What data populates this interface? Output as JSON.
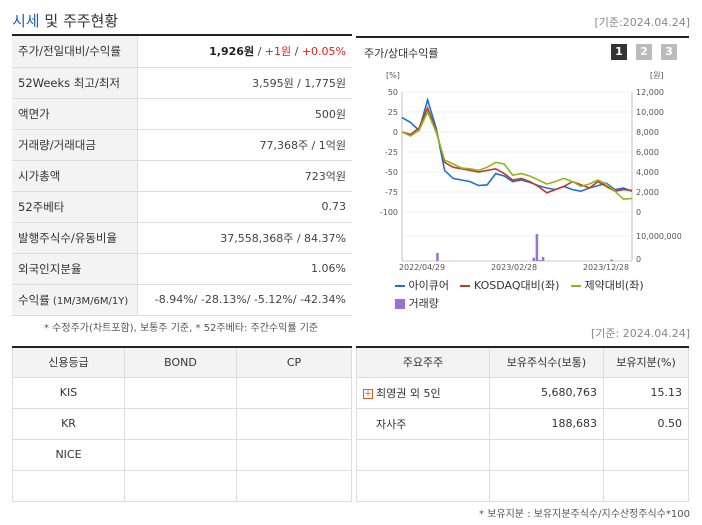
{
  "header": {
    "title_hl": "시세",
    "title_rest": " 및 주주현황",
    "date": "[기준:2024.04.24]"
  },
  "market": {
    "rows": [
      {
        "label": "주가/전일대비/수익률"
      },
      {
        "label": "52Weeks 최고/최저",
        "value": "3,595원 / 1,775원"
      },
      {
        "label": "액면가",
        "value": "500원"
      },
      {
        "label": "거래량/거래대금",
        "value": "77,368주 / 1억원"
      },
      {
        "label": "시가총액",
        "value": "723억원"
      },
      {
        "label": "52주베타",
        "value": "0.73"
      },
      {
        "label": "발행주식수/유동비율",
        "value": "37,558,368주 / 84.37%"
      },
      {
        "label": "외국인지분율",
        "value": "1.06%"
      }
    ],
    "price": "1,926원",
    "sep1": " / ",
    "change": "+1원",
    "sep2": " / ",
    "pct": "+0.05%",
    "return_label": "수익률",
    "return_sub": " (1M/3M/6M/1Y)",
    "returns": "-8.94%/ -28.13%/ -5.12%/ -42.34%"
  },
  "chart_panel": {
    "title": "주가/상대수익률",
    "pages": [
      "1",
      "2",
      "3"
    ],
    "left_unit": "[%]",
    "right_unit": "[원]"
  },
  "chart_data": {
    "type": "line",
    "left_axis_ticks": [
      "50",
      "25",
      "0",
      "-25",
      "-50",
      "-75",
      "-100"
    ],
    "right_axis_ticks": [
      "12,000",
      "10,000",
      "8,000",
      "6,000",
      "4,000",
      "2,000",
      "0"
    ],
    "volume_axis_ticks": [
      "10,000,000",
      "0"
    ],
    "x_ticks": [
      "2022/04/29",
      "2023/02/28",
      "2023/12/28"
    ],
    "ylim": [
      -100,
      50
    ],
    "series": [
      {
        "name": "아이큐어",
        "color": "#1f6fd1",
        "values": [
          18,
          12,
          2,
          40,
          5,
          -48,
          -58,
          -60,
          -62,
          -67,
          -66,
          -52,
          -55,
          -62,
          -60,
          -63,
          -67,
          -70,
          -72,
          -68,
          -72,
          -74,
          -70,
          -67,
          -64,
          -72,
          -70,
          -74
        ]
      },
      {
        "name": "KOSDAQ대비(좌)",
        "color": "#c0392b",
        "values": [
          0,
          -3,
          5,
          30,
          2,
          -38,
          -44,
          -46,
          -48,
          -50,
          -48,
          -46,
          -52,
          -60,
          -58,
          -62,
          -68,
          -76,
          -72,
          -68,
          -62,
          -66,
          -70,
          -62,
          -68,
          -74,
          -72,
          -73
        ]
      },
      {
        "name": "제약대비(좌)",
        "color": "#8fb81a",
        "values": [
          0,
          -5,
          2,
          25,
          0,
          -35,
          -40,
          -45,
          -46,
          -48,
          -44,
          -38,
          -40,
          -54,
          -52,
          -55,
          -60,
          -65,
          -62,
          -58,
          -62,
          -68,
          -65,
          -60,
          -65,
          -74,
          -84,
          -83
        ]
      }
    ],
    "volume": {
      "name": "거래량",
      "color": "#9b6fd6",
      "values": [
        0,
        0,
        0,
        0,
        0,
        0,
        0,
        0,
        0,
        0,
        0,
        0.3,
        0,
        0,
        0,
        0,
        0,
        0,
        0,
        0,
        0,
        0,
        0,
        0,
        0,
        0,
        0,
        0,
        0,
        0,
        0,
        0,
        0,
        0,
        0,
        0,
        0,
        0,
        0,
        0,
        0,
        0,
        0.12,
        1.0,
        0.04,
        0.15,
        0,
        0,
        0,
        0,
        0,
        0,
        0,
        0,
        0,
        0,
        0,
        0,
        0,
        0,
        0,
        0,
        0,
        0,
        0,
        0,
        0,
        0.05,
        0,
        0,
        0,
        0,
        0,
        0
      ]
    }
  },
  "note1": "* 수정주가(차트포함), 보통주 기준, * 52주베타: 주간수익률 기준",
  "date2": "[기준: 2024.04.24]",
  "credit": {
    "headers": [
      "신용등급",
      "BOND",
      "CP"
    ],
    "rows": [
      "KIS",
      "KR",
      "NICE",
      ""
    ]
  },
  "holders": {
    "headers": [
      "주요주주",
      "보유주식수(보통)",
      "보유지분(%)"
    ],
    "rows": [
      {
        "name": "최영권 외 5인",
        "shares": "5,680,763",
        "pct": "15.13"
      },
      {
        "name": "자사주",
        "shares": "188,683",
        "pct": "0.50"
      }
    ]
  },
  "note2": "* 보유지분 : 보유지분주식수/지수산정주식수*100"
}
